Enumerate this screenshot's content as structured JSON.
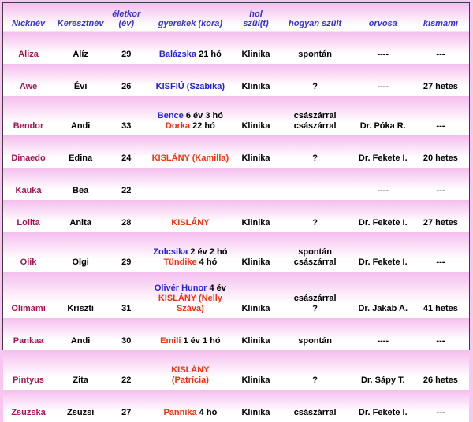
{
  "colors": {
    "frame_pink": "#f8c6f1",
    "row_gradient_top": "#f5bdee",
    "row_gradient_bottom": "#ffffff",
    "border": "#3c3c3c",
    "header_text": "#3434c6",
    "nickname_text": "#a21556",
    "boy_name_text": "#2424cc",
    "girl_name_text": "#ee3311",
    "body_text": "#000000"
  },
  "table": {
    "columns": [
      {
        "key": "nickname",
        "label": "Nicknév"
      },
      {
        "key": "firstname",
        "label": "Keresztnév"
      },
      {
        "key": "age",
        "label": "életkor\n(év)"
      },
      {
        "key": "children",
        "label": "gyerekek (kora)"
      },
      {
        "key": "birthplace",
        "label": "hol\nszül(t)"
      },
      {
        "key": "birthtype",
        "label": "hogyan szült"
      },
      {
        "key": "doctor",
        "label": "orvosa"
      },
      {
        "key": "kismami",
        "label": "kismami"
      }
    ],
    "rows": [
      {
        "nickname": "Aliza",
        "firstname": "Alíz",
        "age": "29",
        "children": [
          [
            {
              "t": "Balázska",
              "c": "boy"
            },
            {
              "t": " 21 hó",
              "c": "plain"
            }
          ]
        ],
        "birthplace": "Klinika",
        "birthtype": [
          "spontán"
        ],
        "doctor": "----",
        "kismami": "---"
      },
      {
        "nickname": "Awe",
        "firstname": "Évi",
        "age": "26",
        "children": [
          [
            {
              "t": "KISFIÚ (Szabika)",
              "c": "boy"
            }
          ]
        ],
        "birthplace": "Klinika",
        "birthtype": [
          "?"
        ],
        "doctor": "----",
        "kismami": "27 hetes"
      },
      {
        "nickname": "Bendor",
        "firstname": "Andi",
        "age": "33",
        "children": [
          [
            {
              "t": "Bence",
              "c": "boy"
            },
            {
              "t": " 6 év 3 hó",
              "c": "plain"
            }
          ],
          [
            {
              "t": "Dorka",
              "c": "girl"
            },
            {
              "t": " 22 hó",
              "c": "plain"
            }
          ]
        ],
        "birthplace": "Klinika",
        "birthtype": [
          "császárral",
          "császárral"
        ],
        "doctor": "Dr. Póka R.",
        "kismami": "---"
      },
      {
        "nickname": "Dinaedo",
        "firstname": "Edina",
        "age": "24",
        "children": [
          [
            {
              "t": "KISLÁNY (Kamilla)",
              "c": "girl"
            }
          ]
        ],
        "birthplace": "Klinika",
        "birthtype": [
          "?"
        ],
        "doctor": "Dr. Fekete I.",
        "kismami": "20 hetes"
      },
      {
        "nickname": "Kauka",
        "firstname": "Bea",
        "age": "22",
        "children": [],
        "birthplace": "",
        "birthtype": [],
        "doctor": "----",
        "kismami": "---"
      },
      {
        "nickname": "Lolita",
        "firstname": "Anita",
        "age": "28",
        "children": [
          [
            {
              "t": "KISLÁNY",
              "c": "girl"
            }
          ]
        ],
        "birthplace": "Klinika",
        "birthtype": [
          "?"
        ],
        "doctor": "Dr. Fekete I.",
        "kismami": "27 hetes"
      },
      {
        "nickname": "Olik",
        "firstname": "Olgi",
        "age": "29",
        "children": [
          [
            {
              "t": "Zolcsika",
              "c": "boy"
            },
            {
              "t": " 2 év 2 hó",
              "c": "plain"
            }
          ],
          [
            {
              "t": "Tündike",
              "c": "girl"
            },
            {
              "t": " 4 hó",
              "c": "plain"
            }
          ]
        ],
        "birthplace": "Klinika",
        "birthtype": [
          "spontán",
          "császárral"
        ],
        "doctor": "Dr. Fekete I.",
        "kismami": "---"
      },
      {
        "nickname": "Olimami",
        "firstname": "Kriszti",
        "age": "31",
        "children": [
          [
            {
              "t": "Olivér Hunor",
              "c": "boy"
            },
            {
              "t": " 4 év",
              "c": "plain"
            }
          ],
          [
            {
              "t": "KISLÁNY (Nelly",
              "c": "girl"
            }
          ],
          [
            {
              "t": "Száva)",
              "c": "girl"
            }
          ]
        ],
        "birthplace": "Klinika",
        "birthtype": [
          "császárral",
          "?"
        ],
        "doctor": "Dr. Jakab A.",
        "kismami": "41 hetes"
      },
      {
        "nickname": "Pankaa",
        "firstname": "Andi",
        "age": "30",
        "children": [
          [
            {
              "t": "Emili",
              "c": "girl"
            },
            {
              "t": " 1 év 1 hó",
              "c": "plain"
            }
          ]
        ],
        "birthplace": "Klinika",
        "birthtype": [
          "spontán"
        ],
        "doctor": "----",
        "kismami": "---"
      },
      {
        "nickname": "Pintyus",
        "firstname": "Zita",
        "age": "22",
        "children": [
          [
            {
              "t": "KISLÁNY",
              "c": "girl"
            }
          ],
          [
            {
              "t": "(Patrícia)",
              "c": "girl"
            }
          ]
        ],
        "birthplace": "Klinika",
        "birthtype": [
          "?"
        ],
        "doctor": "Dr. Sápy T.",
        "kismami": "26 hetes"
      },
      {
        "nickname": "Zsuzska",
        "firstname": "Zsuzsi",
        "age": "27",
        "children": [
          [
            {
              "t": "Pannika",
              "c": "girl"
            },
            {
              "t": " 4 hó",
              "c": "plain"
            }
          ]
        ],
        "birthplace": "Klinika",
        "birthtype": [
          "császárral"
        ],
        "doctor": "Dr. Fekete I.",
        "kismami": "---"
      }
    ]
  },
  "chart_data": {
    "type": "table",
    "title": "",
    "columns": [
      "Nicknév",
      "Keresztnév",
      "életkor (év)",
      "gyerekek (kora)",
      "hol szül(t)",
      "hogyan szült",
      "orvosa",
      "kismami"
    ],
    "rows": [
      [
        "Aliza",
        "Alíz",
        "29",
        "Balázska 21 hó",
        "Klinika",
        "spontán",
        "----",
        "---"
      ],
      [
        "Awe",
        "Évi",
        "26",
        "KISFIÚ (Szabika)",
        "Klinika",
        "?",
        "----",
        "27 hetes"
      ],
      [
        "Bendor",
        "Andi",
        "33",
        "Bence 6 év 3 hó\nDorka 22 hó",
        "Klinika",
        "császárral\ncsászárral",
        "Dr. Póka R.",
        "---"
      ],
      [
        "Dinaedo",
        "Edina",
        "24",
        "KISLÁNY (Kamilla)",
        "Klinika",
        "?",
        "Dr. Fekete I.",
        "20 hetes"
      ],
      [
        "Kauka",
        "Bea",
        "22",
        "",
        "",
        "",
        "----",
        "---"
      ],
      [
        "Lolita",
        "Anita",
        "28",
        "KISLÁNY",
        "Klinika",
        "?",
        "Dr. Fekete I.",
        "27 hetes"
      ],
      [
        "Olik",
        "Olgi",
        "29",
        "Zolcsika 2 év 2 hó\nTündike 4 hó",
        "Klinika",
        "spontán\ncsászárral",
        "Dr. Fekete I.",
        "---"
      ],
      [
        "Olimami",
        "Kriszti",
        "31",
        "Olivér Hunor 4 év\nKISLÁNY (Nelly Száva)",
        "Klinika",
        "császárral\n?",
        "Dr. Jakab A.",
        "41 hetes"
      ],
      [
        "Pankaa",
        "Andi",
        "30",
        "Emili 1 év 1 hó",
        "Klinika",
        "spontán",
        "----",
        "---"
      ],
      [
        "Pintyus",
        "Zita",
        "22",
        "KISLÁNY (Patrícia)",
        "Klinika",
        "?",
        "Dr. Sápy T.",
        "26 hetes"
      ],
      [
        "Zsuzska",
        "Zsuzsi",
        "27",
        "Pannika 4 hó",
        "Klinika",
        "császárral",
        "Dr. Fekete I.",
        "---"
      ]
    ]
  }
}
